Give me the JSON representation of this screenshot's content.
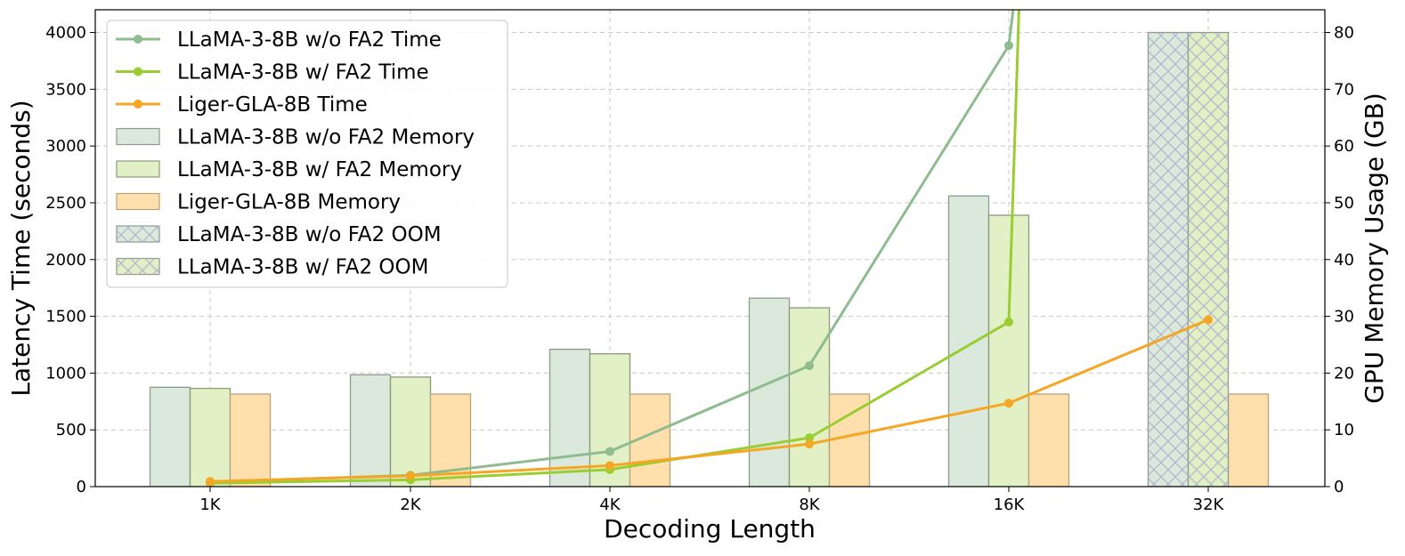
{
  "chart_data": {
    "type": "bar",
    "title": "",
    "xlabel": "Decoding Length",
    "ylabel_left": "Latency Time (seconds)",
    "ylabel_right": "GPU Memory Usage (GB)",
    "categories": [
      "1K",
      "2K",
      "4K",
      "8K",
      "16K",
      "32K"
    ],
    "ylim_left": [
      0,
      4200
    ],
    "ylim_right": [
      0,
      84
    ],
    "yticks_left": [
      0,
      500,
      1000,
      1500,
      2000,
      2500,
      3000,
      3500,
      4000
    ],
    "yticks_right": [
      0,
      10,
      20,
      30,
      40,
      50,
      60,
      70,
      80
    ],
    "grid": true,
    "legend_position": "top-left",
    "line_series": [
      {
        "name": "LLaMA-3-8B w/o FA2 Time",
        "color": "#8fbc8f",
        "values": [
          40,
          100,
          310,
          1065,
          3885,
          null
        ]
      },
      {
        "name": "LLaMA-3-8B w/ FA2 Time",
        "color": "#9acd32",
        "values": [
          30,
          60,
          150,
          430,
          1450,
          null
        ]
      },
      {
        "name": "Liger-GLA-8B Time",
        "color": "#f5a623",
        "values": [
          45,
          95,
          185,
          375,
          735,
          1470
        ]
      }
    ],
    "bar_series": [
      {
        "name": "LLaMA-3-8B w/o FA2 Memory",
        "fill": "#dbe9dc",
        "stroke": "#8e9a8e",
        "values": [
          17.5,
          19.7,
          24.2,
          33.2,
          51.2,
          null
        ]
      },
      {
        "name": "LLaMA-3-8B w/ FA2 Memory",
        "fill": "#e2f0c6",
        "stroke": "#8e9a7a",
        "values": [
          17.3,
          19.3,
          23.4,
          31.5,
          47.8,
          null
        ]
      },
      {
        "name": "Liger-GLA-8B Memory",
        "fill": "#ffe0ad",
        "stroke": "#b8a27a",
        "values": [
          16.3,
          16.3,
          16.3,
          16.3,
          16.3,
          16.3
        ]
      }
    ],
    "oom_series": [
      {
        "name": "LLaMA-3-8B w/o FA2 OOM",
        "fill": "#dbe9dc",
        "hatch": "#b3b3cc",
        "category": "32K",
        "value": 80
      },
      {
        "name": "LLaMA-3-8B w/ FA2 OOM",
        "fill": "#e2f0c6",
        "hatch": "#b3b3cc",
        "category": "32K",
        "value": 80
      }
    ],
    "overflow_lines": [
      {
        "name": "LLaMA-3-8B w/o FA2 Time",
        "to_x_frac": 0.05
      },
      {
        "name": "LLaMA-3-8B w/ FA2 Time",
        "to_x_frac": 0.0
      }
    ]
  }
}
